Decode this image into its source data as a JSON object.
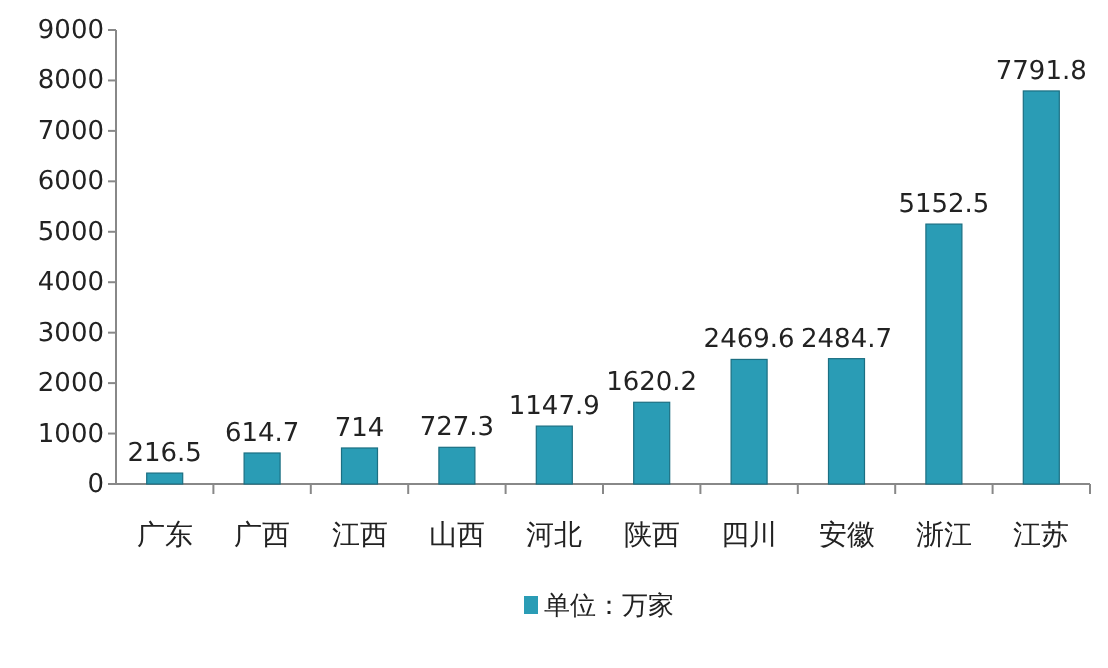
{
  "chart_data": {
    "type": "bar",
    "categories": [
      "广东",
      "广西",
      "江西",
      "山西",
      "河北",
      "陕西",
      "四川",
      "安徽",
      "浙江",
      "江苏"
    ],
    "series": [
      {
        "name": "单位：万家",
        "color": "#2a9cb5",
        "values": [
          216.5,
          614.7,
          714,
          727.3,
          1147.9,
          1620.2,
          2469.6,
          2484.7,
          5152.5,
          7791.8
        ]
      }
    ],
    "ylim": [
      0,
      9000
    ],
    "yticks": [
      0,
      1000,
      2000,
      3000,
      4000,
      5000,
      6000,
      7000,
      8000,
      9000
    ],
    "data_labels": true,
    "legend": "bottom"
  }
}
